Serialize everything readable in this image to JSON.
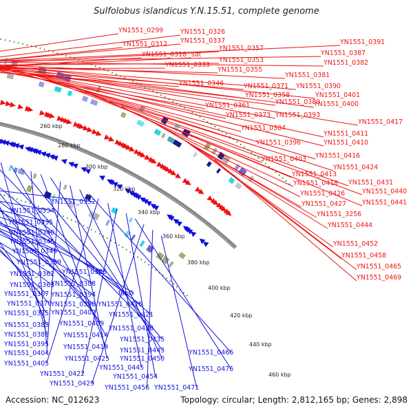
{
  "title": "Sulfolobus islandicus Y.N.15.51, complete genome",
  "accession": "Accession: NC_012623",
  "summary": "Topology: circular; Length: 2,812,165 bp; Genes: 2,898",
  "colors": {
    "forward": "#ee1111",
    "reverse": "#1010dd",
    "backbone": "#888888",
    "dots": "#1a8a1a"
  },
  "tick_labels": [
    "260 kbp",
    "280 kbp",
    "300 kbp",
    "320 kbp",
    "340 kbp",
    "360 kbp",
    "380 kbp",
    "400 kbp",
    "420 kbp",
    "440 kbp",
    "460 kbp"
  ],
  "forward_labels": [
    "YN1551_0299",
    "YN1551_0326",
    "YN1551_0312",
    "YN1551_0337",
    "YN1551_0318",
    "sat",
    "YN1551_0357",
    "YN1551_0391",
    "YN1551_0333",
    "YN1551_0353",
    "YN1551_0387",
    "YN1551_0355",
    "YN1551_0382",
    "YN1551_0346",
    "YN1551_0381",
    "YN1551_0371",
    "YN1551_0390",
    "YN1551_0358",
    "YN1551_0380",
    "YN1551_0401",
    "YN1551_0361",
    "YN1551_0400",
    "YN1551_0373",
    "YN1551_0393",
    "YN1551_0417",
    "YN1551_0384",
    "YN1551_0411",
    "YN1551_0396",
    "YN1551_0410",
    "YN1551_0416",
    "YN1551_0403",
    "YN1551_0424",
    "YN1551_0413",
    "YN1551_0431",
    "YN1551_0418",
    "YN1551_0440",
    "YN1551_0426",
    "YN1551_0441",
    "YN1551_0427",
    "YN1551_3256",
    "YN1551_0444",
    "YN1551_0452",
    "YN1551_0458",
    "YN1551_0465",
    "YN1551_0469"
  ],
  "reverse_labels": [
    "YN1551_0352",
    "YN1551_0334",
    "YN1551_0335",
    "YN1551_0340",
    "YN1551_0345",
    "YN1551_0349",
    "YN1551_0359",
    "YN1551_0385",
    "YN1551_0362",
    "YN1551_0388",
    "YN1551_0363",
    "YN1551_0394",
    "YN1551_0367",
    "fabG",
    "YN1551_0370",
    "YN1551_0398",
    "YN1551_0415",
    "YN1551_0375",
    "YN1551_0402",
    "YN1551_0421",
    "YN1551_0409",
    "YN1551_0383",
    "YN1551_0428",
    "YN1551_0389",
    "YN1551_0414",
    "YN1551_0435",
    "YN1551_0395",
    "YN1551_0419",
    "YN1551_0443",
    "YN1551_0404",
    "YN1551_0425",
    "YN1551_0450",
    "YN1551_0466",
    "YN1551_0405",
    "YN1551_0445",
    "YN1551_0422",
    "YN1551_0454",
    "YN1551_0476",
    "YN1551_0429",
    "YN1551_0456",
    "YN1551_0471"
  ]
}
